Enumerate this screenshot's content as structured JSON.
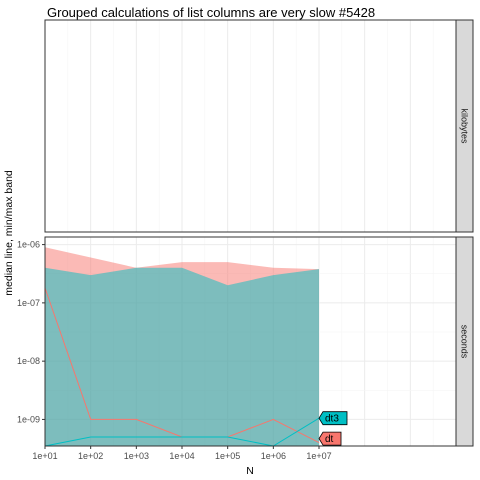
{
  "chart_data": {
    "type": "area",
    "title": "Grouped calculations of list columns are very slow #5428",
    "xlabel": "N",
    "ylabel": "median line, min/max band",
    "x_scale": "log10",
    "x_ticks": [
      "1e+01",
      "1e+02",
      "1e+03",
      "1e+04",
      "1e+05",
      "1e+06",
      "1e+07"
    ],
    "x_tick_values": [
      10,
      100,
      1000,
      10000,
      100000,
      1000000,
      10000000
    ],
    "xlim": [
      10,
      10000000000.0
    ],
    "panels": [
      {
        "name": "kilobytes",
        "y_ticks": [],
        "y_tick_values": []
      },
      {
        "name": "seconds",
        "y_scale": "log10",
        "y_ticks": [
          "1e-09",
          "1e-08",
          "1e-07",
          "1e-06"
        ],
        "y_tick_values": [
          1e-09,
          1e-08,
          1e-07,
          1e-06
        ],
        "ylim": [
          3.5e-10,
          1.35e-06
        ]
      }
    ],
    "grid": true,
    "series": [
      {
        "name": "dt",
        "panel": "seconds",
        "color": "#F8766D",
        "x": [
          10,
          100,
          1000,
          10000,
          100000,
          1000000,
          10000000
        ],
        "median": [
          1.8e-07,
          1e-09,
          1e-09,
          5e-10,
          5e-10,
          1e-09,
          4e-10
        ],
        "min": [
          3.5e-10,
          3.5e-10,
          3.5e-10,
          3.5e-10,
          3.5e-10,
          3.5e-10,
          3.5e-10
        ],
        "max": [
          9e-07,
          6e-07,
          4e-07,
          5e-07,
          5e-07,
          4e-07,
          3.8e-07
        ]
      },
      {
        "name": "dt3",
        "panel": "seconds",
        "color": "#00BFC4",
        "x": [
          10,
          100,
          1000,
          10000,
          100000,
          1000000,
          10000000
        ],
        "median": [
          3.5e-10,
          5e-10,
          5e-10,
          5e-10,
          5e-10,
          3.5e-10,
          1.05e-09
        ],
        "min": [
          3.5e-10,
          3.5e-10,
          3.5e-10,
          3.5e-10,
          3.5e-10,
          3.5e-10,
          3.5e-10
        ],
        "max": [
          4e-07,
          3e-07,
          4e-07,
          4e-07,
          2e-07,
          3e-07,
          3.8e-07
        ]
      }
    ],
    "direct_labels": [
      "dt3",
      "dt"
    ]
  }
}
